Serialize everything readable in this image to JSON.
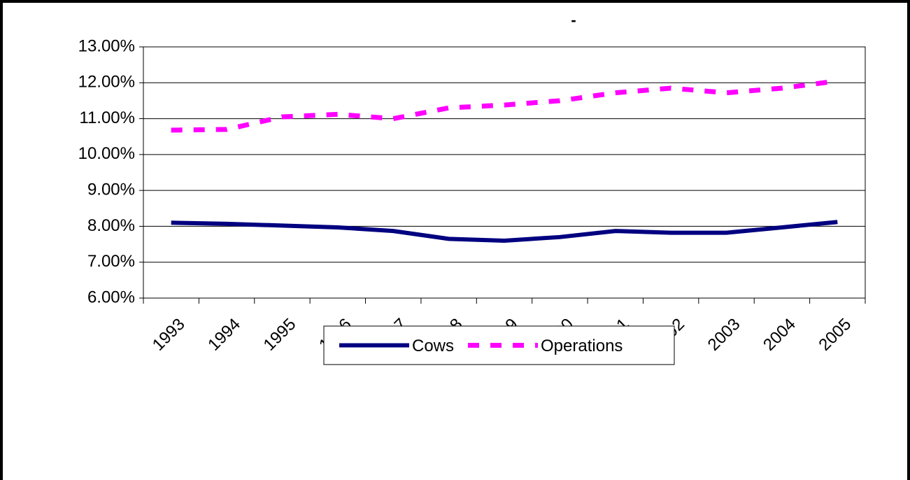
{
  "chart_data": {
    "type": "line",
    "title": "-",
    "categories": [
      "1993",
      "1994",
      "1995",
      "1996",
      "1997",
      "1998",
      "1999",
      "2000",
      "2001",
      "2002",
      "2003",
      "2004",
      "2005"
    ],
    "series": [
      {
        "name": "Cows",
        "color": "#000080",
        "values": [
          8.1,
          8.07,
          8.02,
          7.97,
          7.87,
          7.65,
          7.6,
          7.7,
          7.87,
          7.82,
          7.82,
          7.97,
          8.12
        ]
      },
      {
        "name": "Operations",
        "color": "#ff00ff",
        "values": [
          10.68,
          10.7,
          11.05,
          11.12,
          11.0,
          11.3,
          11.38,
          11.5,
          11.72,
          11.85,
          11.72,
          11.85,
          12.05
        ]
      }
    ],
    "ylim": [
      6,
      13
    ],
    "yticks": [
      {
        "value": 6,
        "label": "6.00%"
      },
      {
        "value": 7,
        "label": "7.00%"
      },
      {
        "value": 8,
        "label": "8.00%"
      },
      {
        "value": 9,
        "label": "9.00%"
      },
      {
        "value": 10,
        "label": "10.00%"
      },
      {
        "value": 11,
        "label": "11.00%"
      },
      {
        "value": 12,
        "label": "12.00%"
      },
      {
        "value": 13,
        "label": "13.00%"
      }
    ],
    "grid": true,
    "legend": "bottom"
  }
}
